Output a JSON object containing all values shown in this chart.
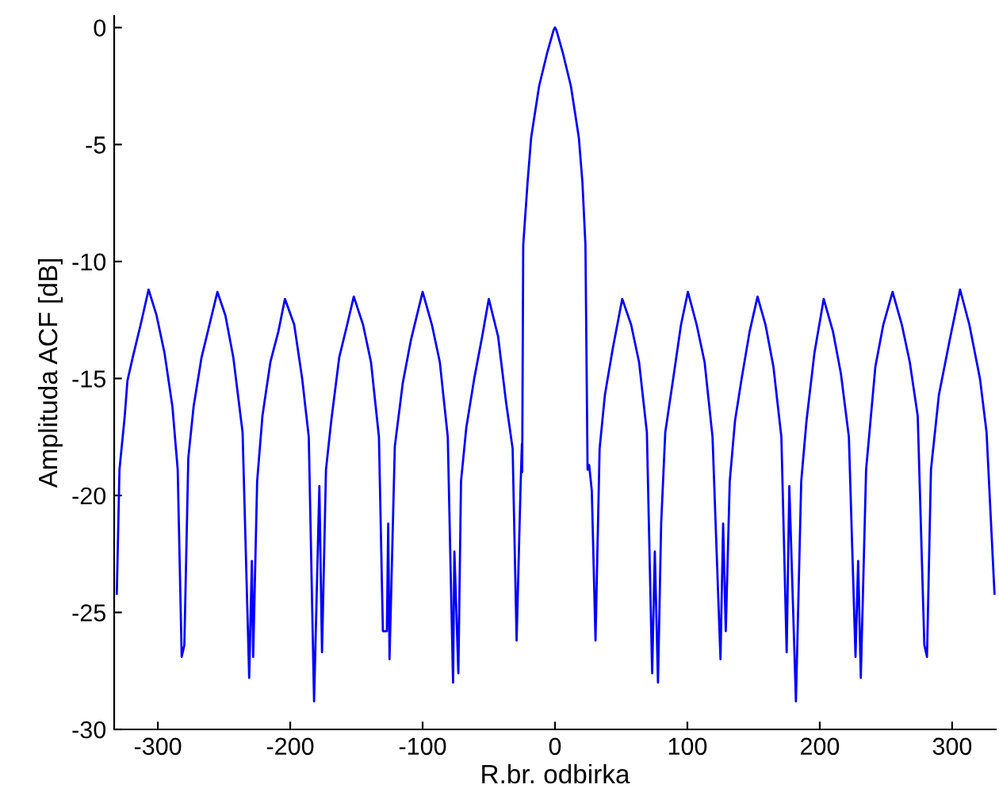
{
  "chart_data": {
    "type": "line",
    "xlabel": "R.br. odbirka",
    "ylabel": "Amplituda ACF [dB]",
    "xlim": [
      -333,
      333
    ],
    "ylim": [
      -30,
      0.5
    ],
    "xticks": [
      -300,
      -200,
      -100,
      0,
      100,
      200,
      300
    ],
    "yticks": [
      -30,
      -25,
      -20,
      -15,
      -10,
      -5,
      0
    ],
    "grid": false,
    "legend": false,
    "marker": "none",
    "line_style": "solid",
    "series": [
      {
        "color": "#0000ff",
        "x": [
          -331,
          -329,
          -325,
          -323,
          -319,
          -313,
          -307,
          -301,
          -295,
          -289,
          -285,
          -282,
          -280,
          -277,
          -273,
          -267,
          -261,
          -255,
          -249,
          -243,
          -236,
          -231,
          -229,
          -228,
          -225,
          -221,
          -215,
          -209,
          -204,
          -197,
          -191,
          -186,
          -182,
          -178,
          -176,
          -173,
          -169,
          -163,
          -157,
          -152,
          -145,
          -139,
          -133,
          -130,
          -127,
          -126,
          -125,
          -121,
          -115,
          -109,
          -100,
          -93,
          -87,
          -81,
          -77,
          -76,
          -73,
          -71,
          -67,
          -61,
          -55,
          -50,
          -43,
          -37,
          -32,
          -29,
          -26,
          -25,
          -24.8,
          -24,
          -20.7,
          -18,
          -12,
          -6,
          -1,
          0,
          1,
          6,
          12,
          18,
          20.7,
          23,
          24.6,
          25.8,
          27.8,
          30.6,
          33.7,
          37.7,
          43.7,
          50.8,
          57.5,
          63.5,
          69.4,
          73.4,
          75.4,
          77.8,
          80.2,
          83.3,
          89.3,
          95.2,
          100.4,
          107,
          113,
          119,
          125,
          127,
          129,
          132,
          136,
          141,
          147,
          153,
          159,
          165,
          171,
          175,
          177,
          182,
          186,
          190,
          196,
          203,
          210,
          216,
          222,
          227,
          229,
          231,
          235,
          242,
          248,
          255,
          262,
          268,
          274,
          279,
          281,
          284,
          290,
          298,
          306,
          313,
          321,
          326,
          332
        ],
        "values": [
          -24.2,
          -18.9,
          -16.6,
          -15.1,
          -14.1,
          -12.7,
          -11.2,
          -12.3,
          -13.9,
          -16.2,
          -18.9,
          -26.9,
          -26.4,
          -18.4,
          -16.2,
          -14.1,
          -12.7,
          -11.3,
          -12.3,
          -14.1,
          -17.3,
          -27.8,
          -22.8,
          -26.9,
          -19.4,
          -16.6,
          -14.3,
          -13.0,
          -11.6,
          -12.7,
          -15.0,
          -17.5,
          -28.8,
          -19.6,
          -26.7,
          -18.9,
          -16.8,
          -14.1,
          -12.7,
          -11.5,
          -12.7,
          -14.3,
          -17.5,
          -25.8,
          -25.8,
          -21.2,
          -27.0,
          -17.9,
          -15.2,
          -13.4,
          -11.3,
          -12.7,
          -14.3,
          -17.5,
          -28.0,
          -22.4,
          -27.6,
          -19.4,
          -17.1,
          -15.0,
          -13.2,
          -11.6,
          -13.2,
          -16.0,
          -18.0,
          -26.2,
          -19.6,
          -17.8,
          -19.0,
          -9.3,
          -6.6,
          -4.7,
          -2.5,
          -1.1,
          -0.1,
          0,
          -0.1,
          -1.1,
          -2.5,
          -4.7,
          -6.6,
          -9.3,
          -18.9,
          -18.7,
          -19.8,
          -26.2,
          -18.0,
          -15.7,
          -13.7,
          -11.6,
          -12.7,
          -14.3,
          -17.3,
          -27.6,
          -22.4,
          -28.0,
          -21.2,
          -17.3,
          -15.0,
          -12.7,
          -11.3,
          -12.7,
          -14.3,
          -17.5,
          -27.0,
          -21.2,
          -25.8,
          -19.4,
          -16.8,
          -15.0,
          -13.0,
          -11.5,
          -12.7,
          -14.5,
          -17.5,
          -26.7,
          -19.6,
          -28.8,
          -19.4,
          -16.8,
          -13.9,
          -11.6,
          -13.0,
          -14.8,
          -17.5,
          -26.9,
          -22.8,
          -27.8,
          -18.9,
          -14.5,
          -12.7,
          -11.3,
          -12.7,
          -14.3,
          -16.6,
          -26.4,
          -26.9,
          -18.9,
          -15.7,
          -13.4,
          -11.2,
          -12.7,
          -15.0,
          -17.3,
          -24.2
        ]
      }
    ]
  }
}
